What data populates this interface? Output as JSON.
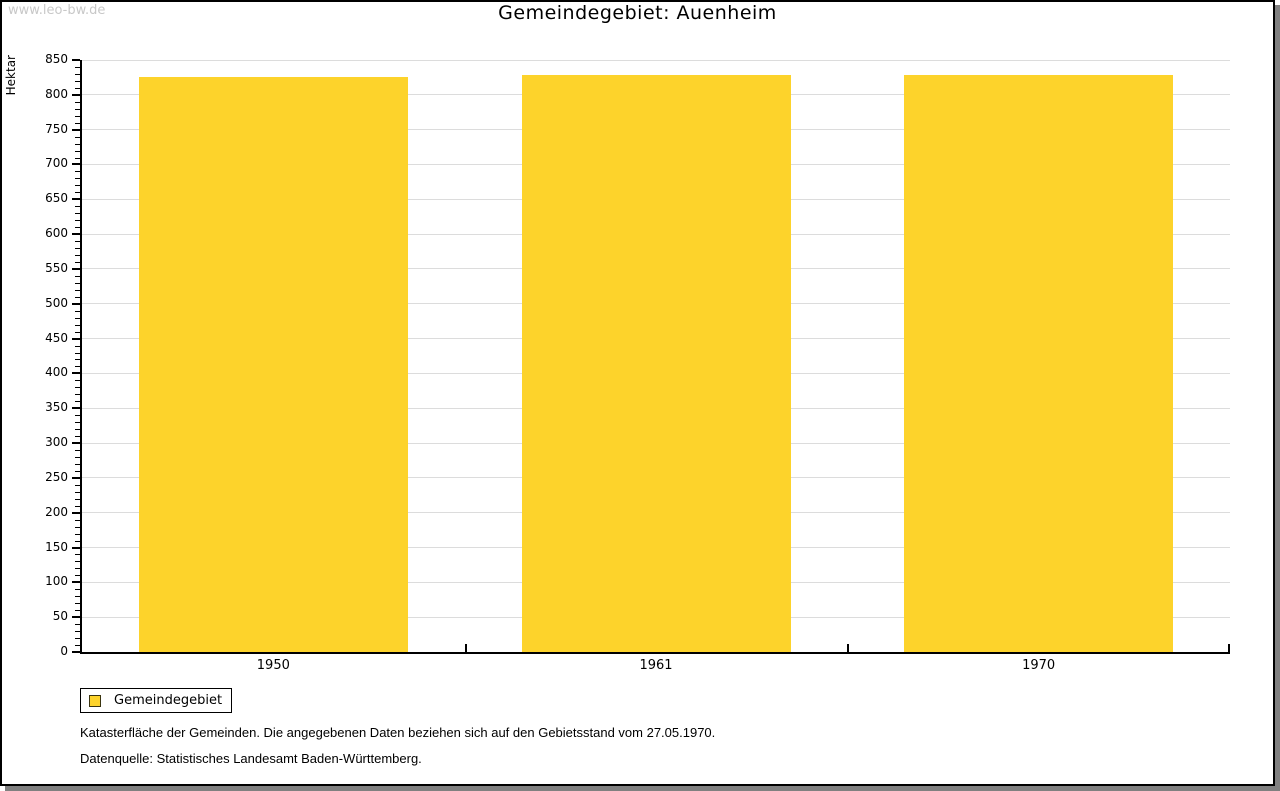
{
  "watermark": "www.leo-bw.de",
  "title": "Gemeindegebiet: Auenheim",
  "legend": {
    "label": "Gemeindegebiet"
  },
  "footnotes": {
    "line1": "Katasterfläche der Gemeinden. Die angegebenen Daten beziehen sich auf den Gebietsstand vom 27.05.1970.",
    "line2": "Datenquelle: Statistisches Landesamt Baden-Württemberg."
  },
  "colors": {
    "bar": "#FDD32B",
    "grid": "#DCDCDC",
    "axis": "#000000",
    "watermark": "#C8C8C8",
    "frame_shadow": "#808080",
    "legend_swatch_border": "#3A3410"
  },
  "chart_data": {
    "type": "bar",
    "title": "Gemeindegebiet: Auenheim",
    "categories": [
      "1950",
      "1961",
      "1970"
    ],
    "series": [
      {
        "name": "Gemeindegebiet",
        "color": "#FDD32B",
        "values": [
          826,
          828,
          828
        ]
      }
    ],
    "xlabel": "",
    "ylabel": "Hektar",
    "ylim": [
      0,
      850
    ],
    "ytick_step": 50,
    "ytick_minor_step": 10,
    "yticks": [
      0,
      50,
      100,
      150,
      200,
      250,
      300,
      350,
      400,
      450,
      500,
      550,
      600,
      650,
      700,
      750,
      800,
      850
    ],
    "grid": true,
    "legend_position": "bottom-left"
  }
}
